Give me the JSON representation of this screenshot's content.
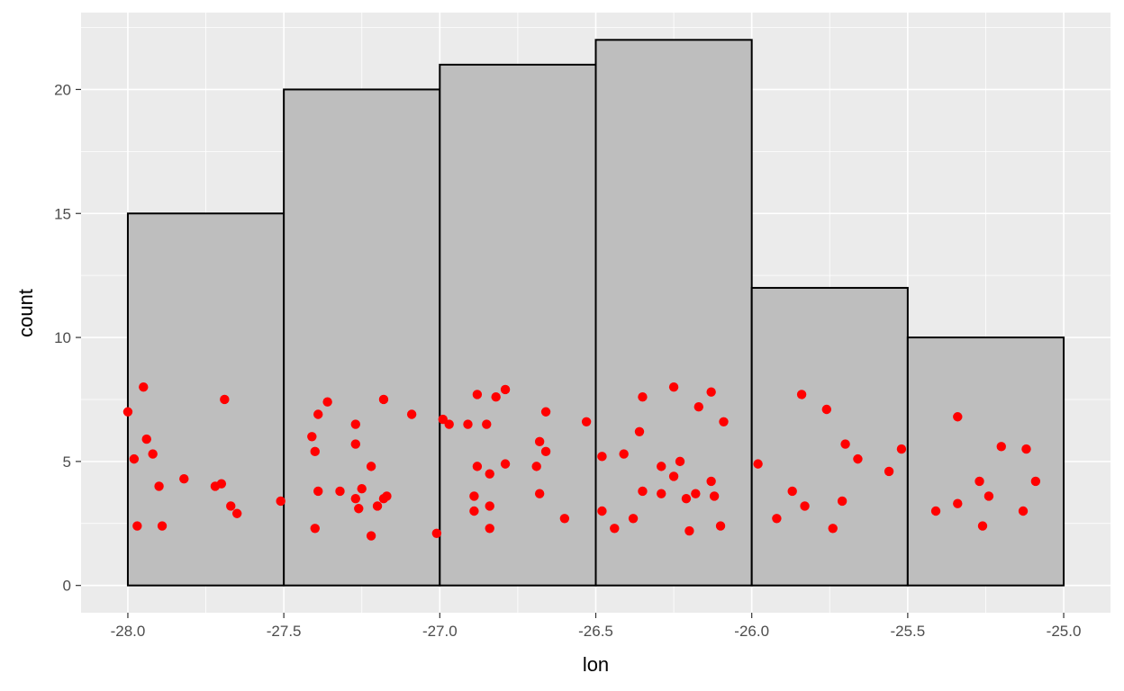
{
  "chart_data": {
    "type": "bar",
    "xlabel": "lon",
    "ylabel": "count",
    "xlim": [
      -28.15,
      -24.85
    ],
    "ylim": [
      -1.1,
      23.1
    ],
    "x_ticks": [
      -28.0,
      -27.5,
      -27.0,
      -26.5,
      -26.0,
      -25.5,
      -25.0
    ],
    "x_tick_labels": [
      "-28.0",
      "-27.5",
      "-27.0",
      "-26.5",
      "-26.0",
      "-25.5",
      "-25.0"
    ],
    "y_ticks": [
      0,
      5,
      10,
      15,
      20
    ],
    "y_tick_labels": [
      "0",
      "5",
      "10",
      "15",
      "20"
    ],
    "grid": true,
    "histogram": {
      "bins": [
        {
          "x0": -28.0,
          "x1": -27.5,
          "count": 15
        },
        {
          "x0": -27.5,
          "x1": -27.0,
          "count": 20
        },
        {
          "x0": -27.0,
          "x1": -26.5,
          "count": 21
        },
        {
          "x0": -26.5,
          "x1": -26.0,
          "count": 22
        },
        {
          "x0": -26.0,
          "x1": -25.5,
          "count": 12
        },
        {
          "x0": -25.5,
          "x1": -25.0,
          "count": 10
        }
      ]
    },
    "points": [
      [
        -28.0,
        7.0
      ],
      [
        -27.95,
        8.0
      ],
      [
        -27.94,
        5.9
      ],
      [
        -27.98,
        5.1
      ],
      [
        -27.92,
        5.3
      ],
      [
        -27.9,
        4.0
      ],
      [
        -27.97,
        2.4
      ],
      [
        -27.89,
        2.4
      ],
      [
        -27.82,
        4.3
      ],
      [
        -27.72,
        4.0
      ],
      [
        -27.7,
        4.1
      ],
      [
        -27.69,
        7.5
      ],
      [
        -27.67,
        3.2
      ],
      [
        -27.65,
        2.9
      ],
      [
        -27.51,
        3.4
      ],
      [
        -27.41,
        6.0
      ],
      [
        -27.39,
        6.9
      ],
      [
        -27.36,
        7.4
      ],
      [
        -27.4,
        5.4
      ],
      [
        -27.39,
        3.8
      ],
      [
        -27.4,
        2.3
      ],
      [
        -27.32,
        3.8
      ],
      [
        -27.27,
        6.5
      ],
      [
        -27.27,
        5.7
      ],
      [
        -27.27,
        3.5
      ],
      [
        -27.26,
        3.1
      ],
      [
        -27.25,
        3.9
      ],
      [
        -27.22,
        4.8
      ],
      [
        -27.2,
        3.2
      ],
      [
        -27.18,
        3.5
      ],
      [
        -27.17,
        3.6
      ],
      [
        -27.22,
        2.0
      ],
      [
        -27.18,
        7.5
      ],
      [
        -27.09,
        6.9
      ],
      [
        -27.01,
        2.1
      ],
      [
        -26.99,
        6.7
      ],
      [
        -26.97,
        6.5
      ],
      [
        -26.91,
        6.5
      ],
      [
        -26.88,
        7.7
      ],
      [
        -26.85,
        6.5
      ],
      [
        -26.82,
        7.6
      ],
      [
        -26.79,
        7.9
      ],
      [
        -26.88,
        4.8
      ],
      [
        -26.84,
        4.5
      ],
      [
        -26.79,
        4.9
      ],
      [
        -26.89,
        3.6
      ],
      [
        -26.89,
        3.0
      ],
      [
        -26.84,
        3.2
      ],
      [
        -26.84,
        2.3
      ],
      [
        -26.69,
        4.8
      ],
      [
        -26.68,
        5.8
      ],
      [
        -26.66,
        5.4
      ],
      [
        -26.66,
        7.0
      ],
      [
        -26.68,
        3.7
      ],
      [
        -26.6,
        2.7
      ],
      [
        -26.53,
        6.6
      ],
      [
        -26.48,
        5.2
      ],
      [
        -26.48,
        3.0
      ],
      [
        -26.44,
        2.3
      ],
      [
        -26.41,
        5.3
      ],
      [
        -26.38,
        2.7
      ],
      [
        -26.36,
        6.2
      ],
      [
        -26.35,
        7.6
      ],
      [
        -26.35,
        3.8
      ],
      [
        -26.29,
        4.8
      ],
      [
        -26.29,
        3.7
      ],
      [
        -26.25,
        8.0
      ],
      [
        -26.25,
        4.4
      ],
      [
        -26.23,
        5.0
      ],
      [
        -26.21,
        3.5
      ],
      [
        -26.2,
        2.2
      ],
      [
        -26.18,
        3.7
      ],
      [
        -26.17,
        7.2
      ],
      [
        -26.13,
        7.8
      ],
      [
        -26.13,
        4.2
      ],
      [
        -26.12,
        3.6
      ],
      [
        -26.1,
        2.4
      ],
      [
        -26.09,
        6.6
      ],
      [
        -25.98,
        4.9
      ],
      [
        -25.92,
        2.7
      ],
      [
        -25.87,
        3.8
      ],
      [
        -25.84,
        7.7
      ],
      [
        -25.83,
        3.2
      ],
      [
        -25.76,
        7.1
      ],
      [
        -25.74,
        2.3
      ],
      [
        -25.71,
        3.4
      ],
      [
        -25.7,
        5.7
      ],
      [
        -25.66,
        5.1
      ],
      [
        -25.56,
        4.6
      ],
      [
        -25.52,
        5.5
      ],
      [
        -25.41,
        3.0
      ],
      [
        -25.34,
        6.8
      ],
      [
        -25.34,
        3.3
      ],
      [
        -25.27,
        4.2
      ],
      [
        -25.26,
        2.4
      ],
      [
        -25.24,
        3.6
      ],
      [
        -25.2,
        5.6
      ],
      [
        -25.13,
        3.0
      ],
      [
        -25.12,
        5.5
      ],
      [
        -25.09,
        4.2
      ]
    ],
    "colors": {
      "panel": "#ebebeb",
      "grid_major": "#ffffff",
      "bar_fill": "#bebebe",
      "bar_stroke": "#000000",
      "point": "#ff0000",
      "tick": "#333333"
    }
  }
}
